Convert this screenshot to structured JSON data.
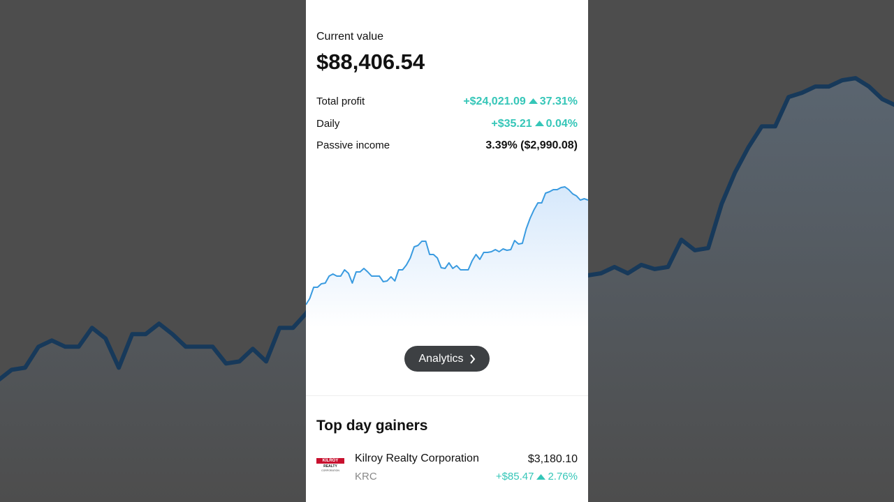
{
  "header": {
    "label": "Current value",
    "value": "$88,406.54"
  },
  "stats": [
    {
      "label": "Total profit",
      "amount": "+$24,021.09",
      "percent": "37.31%"
    },
    {
      "label": "Daily",
      "amount": "+$35.21",
      "percent": "0.04%"
    },
    {
      "label": "Passive income",
      "amount": "3.39% ($2,990.08)"
    }
  ],
  "chart_data": {
    "type": "line",
    "color": "#3a9be0",
    "ylim": [
      0,
      210
    ],
    "values": [
      33,
      42,
      58,
      58,
      63,
      64,
      74,
      77,
      74,
      74,
      83,
      78,
      64,
      80,
      80,
      85,
      80,
      74,
      74,
      74,
      66,
      67,
      73,
      67,
      83,
      83,
      90,
      100,
      116,
      118,
      124,
      124,
      105,
      105,
      100,
      86,
      85,
      93,
      85,
      89,
      83,
      83,
      83,
      96,
      105,
      98,
      108,
      108,
      109,
      112,
      109,
      113,
      111,
      112,
      125,
      120,
      121,
      142,
      157,
      169,
      179,
      179,
      193,
      195,
      198,
      198,
      201,
      202,
      198,
      192,
      189,
      183,
      185,
      183
    ]
  },
  "button": "Analytics",
  "section_title": "Top day gainers",
  "gainers": [
    {
      "logo": [
        "KILROY",
        "REALTY",
        "CORPORATION"
      ],
      "name": "Kilroy Realty Corporation",
      "ticker": "KRC",
      "price": "$3,180.10",
      "change": "+$85.47",
      "percent": "2.76%"
    }
  ]
}
